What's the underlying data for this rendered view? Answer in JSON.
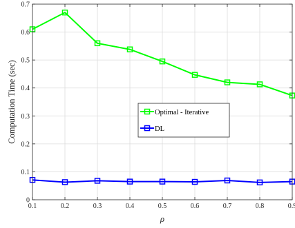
{
  "chart_data": {
    "type": "line",
    "xlabel": "ρ",
    "ylabel": "Computation Time (sec)",
    "x": [
      0.1,
      0.2,
      0.3,
      0.4,
      0.5,
      0.6,
      0.7,
      0.8,
      0.9
    ],
    "xlim": [
      0.1,
      0.9
    ],
    "ylim": [
      0,
      0.7
    ],
    "xticks": [
      "0.1",
      "0.2",
      "0.3",
      "0.4",
      "0.5",
      "0.6",
      "0.7",
      "0.8",
      "0.9"
    ],
    "yticks": [
      "0",
      "0.1",
      "0.2",
      "0.3",
      "0.4",
      "0.5",
      "0.6",
      "0.7"
    ],
    "grid": true,
    "legend_position": "center-right",
    "series": [
      {
        "name": "Optimal - Iterative",
        "color": "#00ff00",
        "marker": "square",
        "values": [
          0.61,
          0.67,
          0.56,
          0.538,
          0.495,
          0.447,
          0.42,
          0.413,
          0.373
        ]
      },
      {
        "name": "DL",
        "color": "#0000ff",
        "marker": "square",
        "values": [
          0.071,
          0.063,
          0.068,
          0.065,
          0.065,
          0.064,
          0.069,
          0.062,
          0.065
        ]
      }
    ]
  }
}
